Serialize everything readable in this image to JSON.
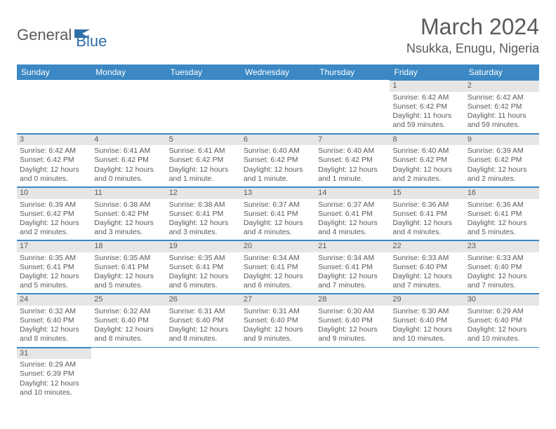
{
  "logo": {
    "general": "General",
    "blue": "Blue"
  },
  "title": "March 2024",
  "location": "Nsukka, Enugu, Nigeria",
  "colors": {
    "header_bg": "#3b88c4",
    "header_text": "#ffffff",
    "border": "#3b88c4",
    "daynum_bg": "#e6e6e6",
    "text": "#5a5a5a",
    "logo_blue": "#2f6fa8"
  },
  "daynames": [
    "Sunday",
    "Monday",
    "Tuesday",
    "Wednesday",
    "Thursday",
    "Friday",
    "Saturday"
  ],
  "weeks": [
    [
      null,
      null,
      null,
      null,
      null,
      {
        "n": "1",
        "sr": "Sunrise: 6:42 AM",
        "ss": "Sunset: 6:42 PM",
        "d1": "Daylight: 11 hours",
        "d2": "and 59 minutes."
      },
      {
        "n": "2",
        "sr": "Sunrise: 6:42 AM",
        "ss": "Sunset: 6:42 PM",
        "d1": "Daylight: 11 hours",
        "d2": "and 59 minutes."
      }
    ],
    [
      {
        "n": "3",
        "sr": "Sunrise: 6:42 AM",
        "ss": "Sunset: 6:42 PM",
        "d1": "Daylight: 12 hours",
        "d2": "and 0 minutes."
      },
      {
        "n": "4",
        "sr": "Sunrise: 6:41 AM",
        "ss": "Sunset: 6:42 PM",
        "d1": "Daylight: 12 hours",
        "d2": "and 0 minutes."
      },
      {
        "n": "5",
        "sr": "Sunrise: 6:41 AM",
        "ss": "Sunset: 6:42 PM",
        "d1": "Daylight: 12 hours",
        "d2": "and 1 minute."
      },
      {
        "n": "6",
        "sr": "Sunrise: 6:40 AM",
        "ss": "Sunset: 6:42 PM",
        "d1": "Daylight: 12 hours",
        "d2": "and 1 minute."
      },
      {
        "n": "7",
        "sr": "Sunrise: 6:40 AM",
        "ss": "Sunset: 6:42 PM",
        "d1": "Daylight: 12 hours",
        "d2": "and 1 minute."
      },
      {
        "n": "8",
        "sr": "Sunrise: 6:40 AM",
        "ss": "Sunset: 6:42 PM",
        "d1": "Daylight: 12 hours",
        "d2": "and 2 minutes."
      },
      {
        "n": "9",
        "sr": "Sunrise: 6:39 AM",
        "ss": "Sunset: 6:42 PM",
        "d1": "Daylight: 12 hours",
        "d2": "and 2 minutes."
      }
    ],
    [
      {
        "n": "10",
        "sr": "Sunrise: 6:39 AM",
        "ss": "Sunset: 6:42 PM",
        "d1": "Daylight: 12 hours",
        "d2": "and 2 minutes."
      },
      {
        "n": "11",
        "sr": "Sunrise: 6:38 AM",
        "ss": "Sunset: 6:42 PM",
        "d1": "Daylight: 12 hours",
        "d2": "and 3 minutes."
      },
      {
        "n": "12",
        "sr": "Sunrise: 6:38 AM",
        "ss": "Sunset: 6:41 PM",
        "d1": "Daylight: 12 hours",
        "d2": "and 3 minutes."
      },
      {
        "n": "13",
        "sr": "Sunrise: 6:37 AM",
        "ss": "Sunset: 6:41 PM",
        "d1": "Daylight: 12 hours",
        "d2": "and 4 minutes."
      },
      {
        "n": "14",
        "sr": "Sunrise: 6:37 AM",
        "ss": "Sunset: 6:41 PM",
        "d1": "Daylight: 12 hours",
        "d2": "and 4 minutes."
      },
      {
        "n": "15",
        "sr": "Sunrise: 6:36 AM",
        "ss": "Sunset: 6:41 PM",
        "d1": "Daylight: 12 hours",
        "d2": "and 4 minutes."
      },
      {
        "n": "16",
        "sr": "Sunrise: 6:36 AM",
        "ss": "Sunset: 6:41 PM",
        "d1": "Daylight: 12 hours",
        "d2": "and 5 minutes."
      }
    ],
    [
      {
        "n": "17",
        "sr": "Sunrise: 6:35 AM",
        "ss": "Sunset: 6:41 PM",
        "d1": "Daylight: 12 hours",
        "d2": "and 5 minutes."
      },
      {
        "n": "18",
        "sr": "Sunrise: 6:35 AM",
        "ss": "Sunset: 6:41 PM",
        "d1": "Daylight: 12 hours",
        "d2": "and 5 minutes."
      },
      {
        "n": "19",
        "sr": "Sunrise: 6:35 AM",
        "ss": "Sunset: 6:41 PM",
        "d1": "Daylight: 12 hours",
        "d2": "and 6 minutes."
      },
      {
        "n": "20",
        "sr": "Sunrise: 6:34 AM",
        "ss": "Sunset: 6:41 PM",
        "d1": "Daylight: 12 hours",
        "d2": "and 6 minutes."
      },
      {
        "n": "21",
        "sr": "Sunrise: 6:34 AM",
        "ss": "Sunset: 6:41 PM",
        "d1": "Daylight: 12 hours",
        "d2": "and 7 minutes."
      },
      {
        "n": "22",
        "sr": "Sunrise: 6:33 AM",
        "ss": "Sunset: 6:40 PM",
        "d1": "Daylight: 12 hours",
        "d2": "and 7 minutes."
      },
      {
        "n": "23",
        "sr": "Sunrise: 6:33 AM",
        "ss": "Sunset: 6:40 PM",
        "d1": "Daylight: 12 hours",
        "d2": "and 7 minutes."
      }
    ],
    [
      {
        "n": "24",
        "sr": "Sunrise: 6:32 AM",
        "ss": "Sunset: 6:40 PM",
        "d1": "Daylight: 12 hours",
        "d2": "and 8 minutes."
      },
      {
        "n": "25",
        "sr": "Sunrise: 6:32 AM",
        "ss": "Sunset: 6:40 PM",
        "d1": "Daylight: 12 hours",
        "d2": "and 8 minutes."
      },
      {
        "n": "26",
        "sr": "Sunrise: 6:31 AM",
        "ss": "Sunset: 6:40 PM",
        "d1": "Daylight: 12 hours",
        "d2": "and 8 minutes."
      },
      {
        "n": "27",
        "sr": "Sunrise: 6:31 AM",
        "ss": "Sunset: 6:40 PM",
        "d1": "Daylight: 12 hours",
        "d2": "and 9 minutes."
      },
      {
        "n": "28",
        "sr": "Sunrise: 6:30 AM",
        "ss": "Sunset: 6:40 PM",
        "d1": "Daylight: 12 hours",
        "d2": "and 9 minutes."
      },
      {
        "n": "29",
        "sr": "Sunrise: 6:30 AM",
        "ss": "Sunset: 6:40 PM",
        "d1": "Daylight: 12 hours",
        "d2": "and 10 minutes."
      },
      {
        "n": "30",
        "sr": "Sunrise: 6:29 AM",
        "ss": "Sunset: 6:40 PM",
        "d1": "Daylight: 12 hours",
        "d2": "and 10 minutes."
      }
    ],
    [
      {
        "n": "31",
        "sr": "Sunrise: 6:29 AM",
        "ss": "Sunset: 6:39 PM",
        "d1": "Daylight: 12 hours",
        "d2": "and 10 minutes."
      },
      null,
      null,
      null,
      null,
      null,
      null
    ]
  ]
}
